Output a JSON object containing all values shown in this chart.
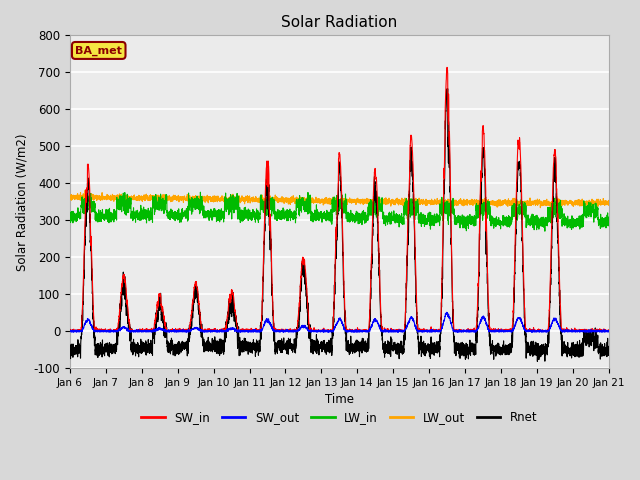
{
  "title": "Solar Radiation",
  "ylabel": "Solar Radiation (W/m2)",
  "xlabel": "Time",
  "ylim": [
    -100,
    800
  ],
  "yticks": [
    -100,
    0,
    100,
    200,
    300,
    400,
    500,
    600,
    700,
    800
  ],
  "xtick_labels": [
    "Jan 6",
    "Jan 7",
    "Jan 8",
    "Jan 9",
    "Jan 10",
    "Jan 11",
    "Jan 12",
    "Jan 13",
    "Jan 14",
    "Jan 15",
    "Jan 16",
    "Jan 17",
    "Jan 18",
    "Jan 19",
    "Jan 20",
    "Jan 21"
  ],
  "station_label": "BA_met",
  "colors": {
    "SW_in": "#ff0000",
    "SW_out": "#0000ff",
    "LW_in": "#00bb00",
    "LW_out": "#ffa500",
    "Rnet": "#000000"
  },
  "fig_facecolor": "#d8d8d8",
  "ax_facecolor": "#ebebeb",
  "grid_color": "#ffffff",
  "sw_in_peaks": [
    450,
    150,
    100,
    130,
    110,
    470,
    200,
    480,
    440,
    525,
    710,
    550,
    530,
    490,
    0
  ],
  "lw_out_base": 355,
  "lw_in_base": 320
}
